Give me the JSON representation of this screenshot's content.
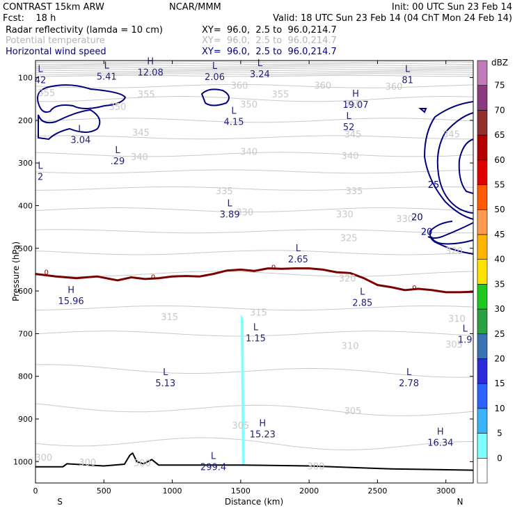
{
  "header": {
    "line1_left": "CONTRAST 15km ARW",
    "line1_mid": "NCAR/MMM",
    "line1_right": "Init: 00 UTC Sun 23 Feb 14",
    "line2_left": "Fcst:    18 h",
    "line2_right": "Valid: 18 UTC Sun 23 Feb 14 (04 ChT Mon 24 Feb 14)",
    "fields": [
      {
        "name": "Radar reflectivity (lamda = 10 cm)",
        "xy": "XY=  96.0,  2.5 to  96.0,214.7",
        "color": "#000000"
      },
      {
        "name": "Potential temperature",
        "xy": "XY=  96.0,  2.5 to  96.0,214.7",
        "color": "#b4b4b4"
      },
      {
        "name": "Horizontal wind speed",
        "xy": "XY=  96.0,  2.5 to  96.0,214.7",
        "color": "#00007f"
      }
    ]
  },
  "chart_data": {
    "type": "cross-section",
    "xlabel": "Distance (km)",
    "ylabel": "Pressure (hPa)",
    "xlim": [
      0,
      3200
    ],
    "ylim": [
      1050,
      60
    ],
    "xticks": [
      0,
      500,
      1000,
      1500,
      2000,
      2500,
      3000
    ],
    "yticks": [
      100,
      200,
      300,
      400,
      500,
      600,
      700,
      800,
      900,
      1000
    ],
    "x_end_labels": {
      "left": "S",
      "right": "N"
    },
    "colorbar": {
      "unit": "dBZ",
      "levels": [
        0,
        5,
        10,
        15,
        20,
        25,
        30,
        35,
        40,
        45,
        50,
        55,
        60,
        65,
        70,
        75
      ],
      "colors": [
        "#ffffff",
        "#7fffff",
        "#3ab3ff",
        "#2c62ff",
        "#2b2bd9",
        "#3a73b3",
        "#2aa140",
        "#1ec81e",
        "#ffe100",
        "#ffb400",
        "#ff9a50",
        "#ff5a00",
        "#e10000",
        "#b40000",
        "#963030",
        "#8c3a7f",
        "#c07ab8"
      ]
    },
    "theta_contours": {
      "color": "#c8c8c8",
      "labels": [
        {
          "text": "355",
          "x": 80,
          "p": 135
        },
        {
          "text": "360",
          "x": 1490,
          "p": 118
        },
        {
          "text": "360",
          "x": 2100,
          "p": 118
        },
        {
          "text": "360",
          "x": 2620,
          "p": 120
        },
        {
          "text": "355",
          "x": 810,
          "p": 138
        },
        {
          "text": "355",
          "x": 1790,
          "p": 138
        },
        {
          "text": "350",
          "x": 600,
          "p": 168
        },
        {
          "text": "350",
          "x": 1560,
          "p": 162
        },
        {
          "text": "350",
          "x": 2320,
          "p": 160
        },
        {
          "text": "345",
          "x": 770,
          "p": 228
        },
        {
          "text": "345",
          "x": 2320,
          "p": 232
        },
        {
          "text": "345",
          "x": 3040,
          "p": 232
        },
        {
          "text": "340",
          "x": 760,
          "p": 285
        },
        {
          "text": "340",
          "x": 1560,
          "p": 273
        },
        {
          "text": "340",
          "x": 2300,
          "p": 283
        },
        {
          "text": "335",
          "x": 1380,
          "p": 365
        },
        {
          "text": "335",
          "x": 2330,
          "p": 365
        },
        {
          "text": "330",
          "x": 1530,
          "p": 415
        },
        {
          "text": "330",
          "x": 2260,
          "p": 420
        },
        {
          "text": "330",
          "x": 2700,
          "p": 430
        },
        {
          "text": "325",
          "x": 2290,
          "p": 475
        },
        {
          "text": "320",
          "x": 3060,
          "p": 505
        },
        {
          "text": "320",
          "x": 2280,
          "p": 570
        },
        {
          "text": "315",
          "x": 980,
          "p": 660
        },
        {
          "text": "315",
          "x": 1630,
          "p": 650
        },
        {
          "text": "310",
          "x": 2300,
          "p": 728
        },
        {
          "text": "310",
          "x": 3080,
          "p": 664
        },
        {
          "text": "305",
          "x": 3060,
          "p": 725
        },
        {
          "text": "305",
          "x": 2320,
          "p": 880
        },
        {
          "text": "305",
          "x": 1500,
          "p": 915
        },
        {
          "text": "300",
          "x": 60,
          "p": 990
        },
        {
          "text": "300",
          "x": 380,
          "p": 1001
        },
        {
          "text": "300",
          "x": 780,
          "p": 1003
        },
        {
          "text": "300",
          "x": 2050,
          "p": 1010
        }
      ]
    },
    "wind_contours": {
      "color": "#00007f",
      "labels": [
        {
          "text": "25",
          "x": 2910,
          "p": 350
        },
        {
          "text": "20",
          "x": 2790,
          "p": 426
        },
        {
          "text": "20",
          "x": 2860,
          "p": 460
        }
      ]
    },
    "reflectivity_zero_line": {
      "color": "#7a0000",
      "x": [
        0,
        150,
        300,
        450,
        600,
        700,
        800,
        900,
        1000,
        1100,
        1200,
        1300,
        1400,
        1500,
        1600,
        1700,
        1800,
        1900,
        2000,
        2100,
        2200,
        2300,
        2400,
        2500,
        2600,
        2700,
        2800,
        2900,
        3000,
        3100,
        3200
      ],
      "p": [
        560,
        566,
        570,
        566,
        575,
        568,
        572,
        570,
        566,
        565,
        566,
        560,
        552,
        550,
        553,
        547,
        548,
        547,
        547,
        550,
        556,
        558,
        570,
        586,
        591,
        598,
        595,
        598,
        603,
        603,
        602
      ],
      "labels": [
        {
          "text": "0",
          "x": 80,
          "p": 557
        },
        {
          "text": "0",
          "x": 860,
          "p": 568
        },
        {
          "text": "0",
          "x": 1740,
          "p": 545
        },
        {
          "text": "0",
          "x": 2770,
          "p": 593
        }
      ]
    },
    "reflectivity_echo": {
      "x_range": [
        1490,
        1530
      ],
      "p_top": 655,
      "p_bottom": 1010,
      "color": "#7fffff"
    },
    "terrain": {
      "x": [
        0,
        200,
        230,
        500,
        650,
        690,
        710,
        740,
        790,
        850,
        900,
        1500,
        2000,
        2600,
        3200
      ],
      "p": [
        1012,
        1012,
        1005,
        1010,
        1006,
        985,
        980,
        1000,
        1005,
        995,
        1008,
        1008,
        1010,
        1017,
        1020
      ]
    },
    "extrema": [
      {
        "kind": "L",
        "value": "42",
        "x": 0,
        "p": 100
      },
      {
        "kind": "L",
        "value": "5.41",
        "x": 520,
        "p": 92
      },
      {
        "kind": "H",
        "value": "12.08",
        "x": 840,
        "p": 82
      },
      {
        "kind": "L",
        "value": "2.06",
        "x": 1310,
        "p": 93
      },
      {
        "kind": "L",
        "value": "3.24",
        "x": 1640,
        "p": 86
      },
      {
        "kind": "L",
        "value": "81",
        "x": 2720,
        "p": 100
      },
      {
        "kind": "H",
        "value": "19.07",
        "x": 2340,
        "p": 158
      },
      {
        "kind": "L",
        "value": "3.04",
        "x": 330,
        "p": 240
      },
      {
        "kind": "L",
        "value": "4.15",
        "x": 1450,
        "p": 198
      },
      {
        "kind": "L",
        "value": "52",
        "x": 2290,
        "p": 210
      },
      {
        "kind": "L",
        "value": ".29",
        "x": 600,
        "p": 290
      },
      {
        "kind": "L",
        "value": "2",
        "x": 0,
        "p": 327
      },
      {
        "kind": "L",
        "value": "3.89",
        "x": 1420,
        "p": 415
      },
      {
        "kind": "L",
        "value": "2.65",
        "x": 1920,
        "p": 520
      },
      {
        "kind": "H",
        "value": "15.96",
        "x": 260,
        "p": 618
      },
      {
        "kind": "L",
        "value": "2.85",
        "x": 2390,
        "p": 622
      },
      {
        "kind": "L",
        "value": "1.15",
        "x": 1610,
        "p": 705
      },
      {
        "kind": "L",
        "value": "1.9",
        "x": 3140,
        "p": 708
      },
      {
        "kind": "L",
        "value": "5.13",
        "x": 950,
        "p": 810
      },
      {
        "kind": "L",
        "value": "2.78",
        "x": 2730,
        "p": 810
      },
      {
        "kind": "H",
        "value": "15.23",
        "x": 1660,
        "p": 930
      },
      {
        "kind": "H",
        "value": "16.34",
        "x": 2960,
        "p": 950
      },
      {
        "kind": "L",
        "value": "299.4",
        "x": 1300,
        "p": 1007
      }
    ]
  }
}
